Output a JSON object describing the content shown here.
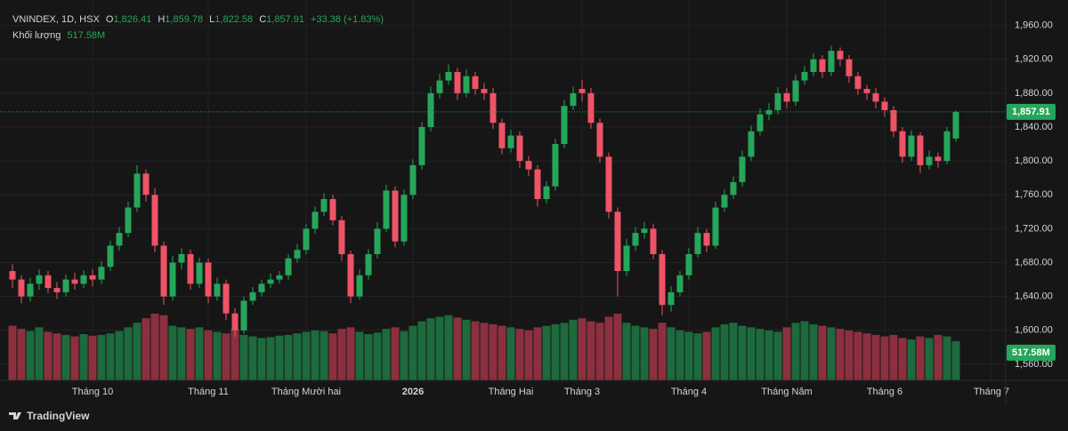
{
  "header": {
    "symbol": "VNINDEX, 1D, HSX",
    "o_label": "O",
    "o": "1,826.41",
    "h_label": "H",
    "h": "1,859.78",
    "l_label": "L",
    "l": "1,822.58",
    "c_label": "C",
    "c": "1,857.91",
    "change": "+33.38 (+1.83%)",
    "volume_label": "Khối lượng",
    "volume": "517.58M"
  },
  "footer": {
    "brand": "TradingView"
  },
  "chart_data": {
    "type": "candlestick",
    "up_color": "#26a65b",
    "down_color": "#ef5366",
    "volume_up_color": "#1d6a3d",
    "volume_down_color": "#8c3040",
    "ylim": [
      1541,
      1990
    ],
    "yticks": [
      {
        "value": 1560,
        "label": "1,560.00"
      },
      {
        "value": 1600,
        "label": "1,600.00"
      },
      {
        "value": 1640,
        "label": "1,640.00"
      },
      {
        "value": 1680,
        "label": "1,680.00"
      },
      {
        "value": 1720,
        "label": "1,720.00"
      },
      {
        "value": 1760,
        "label": "1,760.00"
      },
      {
        "value": 1800,
        "label": "1,800.00"
      },
      {
        "value": 1840,
        "label": "1,840.00"
      },
      {
        "value": 1880,
        "label": "1,880.00"
      },
      {
        "value": 1920,
        "label": "1,920.00"
      },
      {
        "value": 1960,
        "label": "1,960.00"
      }
    ],
    "grid": true,
    "last_price_label": "1,857.91",
    "last_volume_label": "517.58M",
    "x_labels": [
      {
        "label": "Tháng 10",
        "at": 9
      },
      {
        "label": "Tháng 11",
        "at": 22
      },
      {
        "label": "Tháng Mười hai",
        "at": 33
      },
      {
        "label": "2026",
        "at": 45
      },
      {
        "label": "Tháng Hai",
        "at": 56
      },
      {
        "label": "Tháng 3",
        "at": 64
      },
      {
        "label": "Tháng 4",
        "at": 76
      },
      {
        "label": "Tháng Năm",
        "at": 87
      },
      {
        "label": "Tháng 6",
        "at": 98
      },
      {
        "label": "Tháng 7",
        "at": 110
      }
    ],
    "ohlc": [
      [
        1670,
        1678,
        1650,
        1660
      ],
      [
        1660,
        1665,
        1632,
        1640
      ],
      [
        1640,
        1662,
        1634,
        1655
      ],
      [
        1655,
        1672,
        1648,
        1665
      ],
      [
        1665,
        1670,
        1644,
        1650
      ],
      [
        1650,
        1657,
        1637,
        1645
      ],
      [
        1645,
        1666,
        1640,
        1660
      ],
      [
        1660,
        1668,
        1648,
        1655
      ],
      [
        1655,
        1671,
        1650,
        1665
      ],
      [
        1665,
        1672,
        1652,
        1660
      ],
      [
        1660,
        1682,
        1655,
        1675
      ],
      [
        1675,
        1706,
        1670,
        1700
      ],
      [
        1700,
        1722,
        1694,
        1715
      ],
      [
        1715,
        1752,
        1710,
        1745
      ],
      [
        1745,
        1795,
        1740,
        1785
      ],
      [
        1785,
        1790,
        1752,
        1760
      ],
      [
        1760,
        1768,
        1692,
        1700
      ],
      [
        1700,
        1705,
        1630,
        1640
      ],
      [
        1640,
        1688,
        1635,
        1680
      ],
      [
        1680,
        1697,
        1672,
        1690
      ],
      [
        1690,
        1695,
        1648,
        1655
      ],
      [
        1655,
        1686,
        1650,
        1680
      ],
      [
        1680,
        1685,
        1632,
        1640
      ],
      [
        1640,
        1662,
        1635,
        1655
      ],
      [
        1655,
        1660,
        1612,
        1620
      ],
      [
        1620,
        1626,
        1592,
        1600
      ],
      [
        1600,
        1640,
        1596,
        1635
      ],
      [
        1635,
        1651,
        1630,
        1645
      ],
      [
        1645,
        1660,
        1640,
        1655
      ],
      [
        1655,
        1667,
        1650,
        1660
      ],
      [
        1660,
        1670,
        1655,
        1665
      ],
      [
        1665,
        1690,
        1660,
        1685
      ],
      [
        1685,
        1702,
        1680,
        1695
      ],
      [
        1695,
        1726,
        1690,
        1720
      ],
      [
        1720,
        1746,
        1714,
        1740
      ],
      [
        1740,
        1762,
        1735,
        1755
      ],
      [
        1755,
        1760,
        1724,
        1730
      ],
      [
        1730,
        1735,
        1682,
        1690
      ],
      [
        1690,
        1694,
        1632,
        1640
      ],
      [
        1640,
        1672,
        1636,
        1665
      ],
      [
        1665,
        1696,
        1660,
        1690
      ],
      [
        1690,
        1728,
        1685,
        1720
      ],
      [
        1720,
        1772,
        1716,
        1765
      ],
      [
        1765,
        1770,
        1698,
        1705
      ],
      [
        1705,
        1766,
        1700,
        1760
      ],
      [
        1760,
        1802,
        1755,
        1795
      ],
      [
        1795,
        1846,
        1790,
        1840
      ],
      [
        1840,
        1888,
        1835,
        1880
      ],
      [
        1880,
        1903,
        1874,
        1895
      ],
      [
        1895,
        1914,
        1890,
        1905
      ],
      [
        1905,
        1910,
        1872,
        1880
      ],
      [
        1880,
        1908,
        1875,
        1900
      ],
      [
        1900,
        1905,
        1878,
        1885
      ],
      [
        1885,
        1892,
        1872,
        1880
      ],
      [
        1880,
        1886,
        1838,
        1845
      ],
      [
        1845,
        1850,
        1808,
        1815
      ],
      [
        1815,
        1837,
        1810,
        1830
      ],
      [
        1830,
        1835,
        1792,
        1800
      ],
      [
        1800,
        1806,
        1782,
        1790
      ],
      [
        1790,
        1795,
        1746,
        1755
      ],
      [
        1755,
        1776,
        1750,
        1770
      ],
      [
        1770,
        1826,
        1765,
        1820
      ],
      [
        1820,
        1872,
        1815,
        1865
      ],
      [
        1865,
        1888,
        1860,
        1880
      ],
      [
        1885,
        1896,
        1870,
        1880
      ],
      [
        1880,
        1886,
        1838,
        1845
      ],
      [
        1845,
        1850,
        1798,
        1805
      ],
      [
        1805,
        1810,
        1732,
        1740
      ],
      [
        1740,
        1745,
        1640,
        1670
      ],
      [
        1670,
        1708,
        1664,
        1700
      ],
      [
        1700,
        1722,
        1694,
        1715
      ],
      [
        1715,
        1728,
        1708,
        1720
      ],
      [
        1720,
        1726,
        1684,
        1690
      ],
      [
        1690,
        1695,
        1618,
        1630
      ],
      [
        1630,
        1652,
        1622,
        1645
      ],
      [
        1645,
        1670,
        1640,
        1665
      ],
      [
        1665,
        1697,
        1660,
        1690
      ],
      [
        1690,
        1722,
        1686,
        1715
      ],
      [
        1715,
        1720,
        1692,
        1700
      ],
      [
        1700,
        1752,
        1696,
        1745
      ],
      [
        1745,
        1766,
        1740,
        1760
      ],
      [
        1760,
        1782,
        1755,
        1775
      ],
      [
        1775,
        1812,
        1770,
        1805
      ],
      [
        1805,
        1842,
        1800,
        1835
      ],
      [
        1835,
        1862,
        1830,
        1855
      ],
      [
        1855,
        1868,
        1848,
        1860
      ],
      [
        1860,
        1887,
        1855,
        1880
      ],
      [
        1880,
        1886,
        1862,
        1870
      ],
      [
        1870,
        1902,
        1865,
        1895
      ],
      [
        1895,
        1912,
        1890,
        1905
      ],
      [
        1905,
        1927,
        1900,
        1920
      ],
      [
        1920,
        1925,
        1898,
        1905
      ],
      [
        1905,
        1936,
        1900,
        1930
      ],
      [
        1930,
        1934,
        1912,
        1920
      ],
      [
        1920,
        1925,
        1892,
        1900
      ],
      [
        1900,
        1905,
        1878,
        1885
      ],
      [
        1885,
        1890,
        1872,
        1880
      ],
      [
        1880,
        1886,
        1862,
        1870
      ],
      [
        1870,
        1875,
        1852,
        1860
      ],
      [
        1860,
        1865,
        1828,
        1835
      ],
      [
        1835,
        1840,
        1798,
        1805
      ],
      [
        1805,
        1836,
        1800,
        1830
      ],
      [
        1830,
        1834,
        1786,
        1795
      ],
      [
        1795,
        1812,
        1790,
        1805
      ],
      [
        1805,
        1810,
        1792,
        1800
      ],
      [
        1800,
        1840,
        1796,
        1835
      ],
      [
        1826.41,
        1859.78,
        1822.58,
        1857.91
      ]
    ],
    "volume": [
      720,
      680,
      650,
      700,
      640,
      620,
      600,
      580,
      610,
      590,
      600,
      620,
      650,
      700,
      760,
      820,
      880,
      860,
      720,
      700,
      680,
      700,
      660,
      640,
      620,
      680,
      600,
      580,
      560,
      570,
      590,
      600,
      620,
      640,
      660,
      650,
      620,
      680,
      700,
      640,
      610,
      630,
      680,
      700,
      650,
      720,
      780,
      820,
      840,
      860,
      830,
      800,
      780,
      760,
      740,
      720,
      700,
      680,
      660,
      700,
      720,
      740,
      760,
      800,
      820,
      780,
      760,
      840,
      880,
      760,
      720,
      700,
      680,
      760,
      700,
      660,
      640,
      620,
      640,
      700,
      740,
      760,
      720,
      700,
      680,
      660,
      640,
      700,
      760,
      780,
      740,
      720,
      700,
      680,
      660,
      640,
      620,
      600,
      580,
      600,
      560,
      540,
      580,
      560,
      600,
      580,
      517.58
    ]
  }
}
